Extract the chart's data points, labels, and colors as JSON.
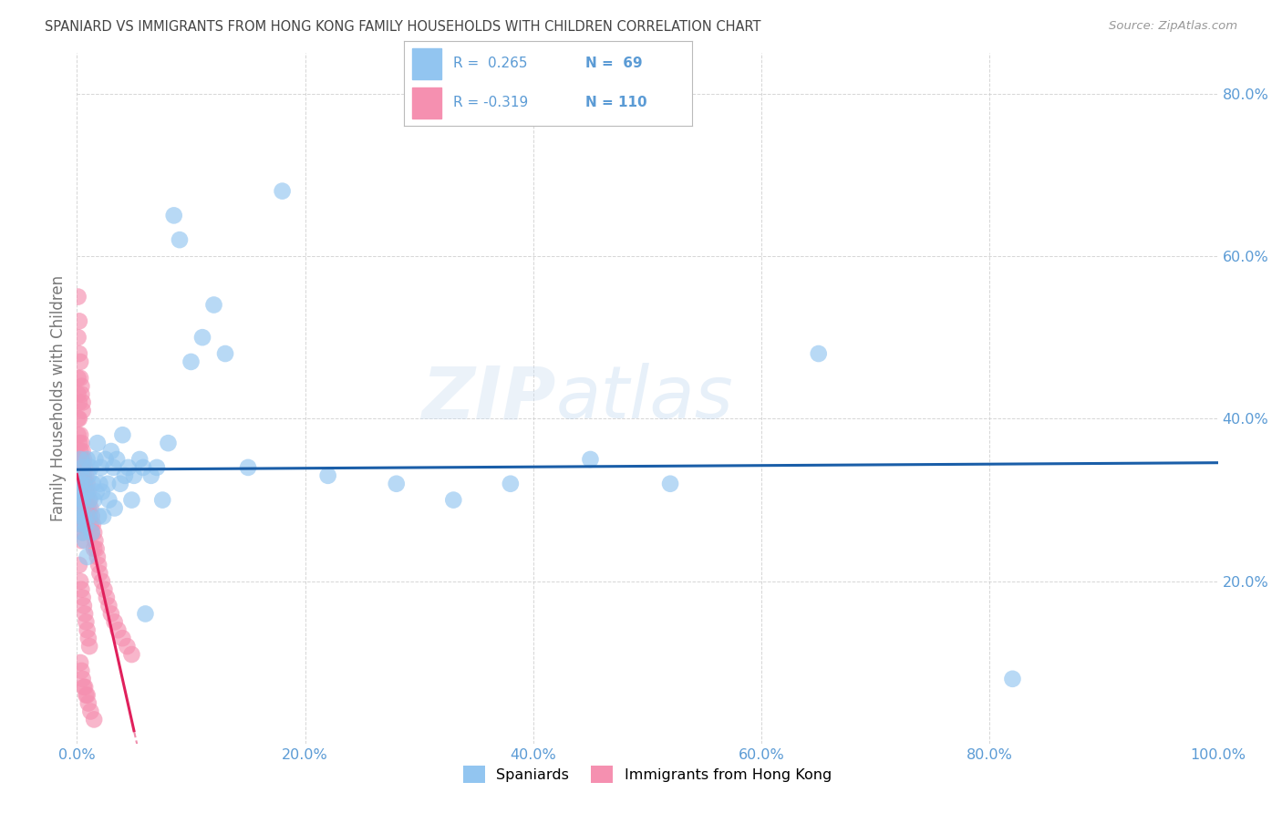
{
  "title": "SPANIARD VS IMMIGRANTS FROM HONG KONG FAMILY HOUSEHOLDS WITH CHILDREN CORRELATION CHART",
  "source": "Source: ZipAtlas.com",
  "ylabel": "Family Households with Children",
  "xlim": [
    0.0,
    1.0
  ],
  "ylim": [
    0.0,
    0.85
  ],
  "x_ticks": [
    0.0,
    0.2,
    0.4,
    0.6,
    0.8,
    1.0
  ],
  "x_tick_labels": [
    "0.0%",
    "20.0%",
    "40.0%",
    "60.0%",
    "80.0%",
    "100.0%"
  ],
  "y_ticks": [
    0.0,
    0.2,
    0.4,
    0.6,
    0.8
  ],
  "y_tick_labels": [
    "",
    "20.0%",
    "40.0%",
    "60.0%",
    "80.0%"
  ],
  "blue_color": "#92C5F0",
  "pink_color": "#F590B0",
  "trend_blue": "#1A5EA8",
  "trend_pink": "#E0205C",
  "background_color": "#ffffff",
  "grid_color": "#CCCCCC",
  "title_color": "#444444",
  "axis_tick_color": "#5B9BD5",
  "spaniards_x": [
    0.001,
    0.002,
    0.002,
    0.003,
    0.003,
    0.004,
    0.004,
    0.004,
    0.005,
    0.005,
    0.005,
    0.006,
    0.006,
    0.007,
    0.008,
    0.008,
    0.009,
    0.009,
    0.01,
    0.01,
    0.011,
    0.012,
    0.013,
    0.014,
    0.015,
    0.016,
    0.017,
    0.018,
    0.019,
    0.02,
    0.021,
    0.022,
    0.023,
    0.025,
    0.027,
    0.028,
    0.03,
    0.032,
    0.033,
    0.035,
    0.038,
    0.04,
    0.042,
    0.045,
    0.048,
    0.05,
    0.055,
    0.058,
    0.06,
    0.065,
    0.07,
    0.075,
    0.08,
    0.085,
    0.09,
    0.1,
    0.11,
    0.12,
    0.13,
    0.15,
    0.18,
    0.22,
    0.28,
    0.33,
    0.38,
    0.45,
    0.52,
    0.65,
    0.82
  ],
  "spaniards_y": [
    0.29,
    0.3,
    0.32,
    0.28,
    0.35,
    0.27,
    0.31,
    0.33,
    0.26,
    0.3,
    0.34,
    0.28,
    0.32,
    0.25,
    0.31,
    0.27,
    0.23,
    0.35,
    0.28,
    0.33,
    0.3,
    0.34,
    0.26,
    0.32,
    0.3,
    0.35,
    0.31,
    0.37,
    0.28,
    0.32,
    0.34,
    0.31,
    0.28,
    0.35,
    0.32,
    0.3,
    0.36,
    0.34,
    0.29,
    0.35,
    0.32,
    0.38,
    0.33,
    0.34,
    0.3,
    0.33,
    0.35,
    0.34,
    0.16,
    0.33,
    0.34,
    0.3,
    0.37,
    0.65,
    0.62,
    0.47,
    0.5,
    0.54,
    0.48,
    0.34,
    0.68,
    0.33,
    0.32,
    0.3,
    0.32,
    0.35,
    0.32,
    0.48,
    0.08
  ],
  "hk_x": [
    0.001,
    0.001,
    0.001,
    0.001,
    0.002,
    0.002,
    0.002,
    0.002,
    0.002,
    0.002,
    0.002,
    0.003,
    0.003,
    0.003,
    0.003,
    0.003,
    0.003,
    0.003,
    0.003,
    0.003,
    0.003,
    0.004,
    0.004,
    0.004,
    0.004,
    0.004,
    0.004,
    0.004,
    0.004,
    0.004,
    0.005,
    0.005,
    0.005,
    0.005,
    0.005,
    0.005,
    0.005,
    0.005,
    0.006,
    0.006,
    0.006,
    0.006,
    0.006,
    0.007,
    0.007,
    0.007,
    0.007,
    0.008,
    0.008,
    0.008,
    0.008,
    0.009,
    0.009,
    0.009,
    0.01,
    0.01,
    0.011,
    0.011,
    0.012,
    0.012,
    0.013,
    0.013,
    0.014,
    0.015,
    0.015,
    0.016,
    0.017,
    0.018,
    0.019,
    0.02,
    0.022,
    0.024,
    0.026,
    0.028,
    0.03,
    0.033,
    0.036,
    0.04,
    0.044,
    0.048,
    0.001,
    0.001,
    0.002,
    0.002,
    0.003,
    0.003,
    0.004,
    0.004,
    0.005,
    0.005,
    0.002,
    0.003,
    0.004,
    0.005,
    0.006,
    0.007,
    0.008,
    0.009,
    0.01,
    0.011,
    0.003,
    0.004,
    0.005,
    0.006,
    0.007,
    0.008,
    0.009,
    0.01,
    0.012,
    0.015
  ],
  "hk_y": [
    0.45,
    0.43,
    0.4,
    0.38,
    0.42,
    0.4,
    0.37,
    0.35,
    0.33,
    0.3,
    0.28,
    0.38,
    0.36,
    0.34,
    0.32,
    0.3,
    0.28,
    0.27,
    0.35,
    0.33,
    0.31,
    0.37,
    0.35,
    0.33,
    0.31,
    0.29,
    0.27,
    0.25,
    0.35,
    0.33,
    0.36,
    0.34,
    0.32,
    0.3,
    0.28,
    0.26,
    0.34,
    0.32,
    0.35,
    0.33,
    0.31,
    0.29,
    0.27,
    0.34,
    0.32,
    0.3,
    0.28,
    0.33,
    0.31,
    0.29,
    0.27,
    0.32,
    0.3,
    0.28,
    0.31,
    0.29,
    0.3,
    0.28,
    0.29,
    0.27,
    0.28,
    0.26,
    0.27,
    0.26,
    0.24,
    0.25,
    0.24,
    0.23,
    0.22,
    0.21,
    0.2,
    0.19,
    0.18,
    0.17,
    0.16,
    0.15,
    0.14,
    0.13,
    0.12,
    0.11,
    0.55,
    0.5,
    0.52,
    0.48,
    0.47,
    0.45,
    0.44,
    0.43,
    0.42,
    0.41,
    0.22,
    0.2,
    0.19,
    0.18,
    0.17,
    0.16,
    0.15,
    0.14,
    0.13,
    0.12,
    0.1,
    0.09,
    0.08,
    0.07,
    0.07,
    0.06,
    0.06,
    0.05,
    0.04,
    0.03
  ]
}
